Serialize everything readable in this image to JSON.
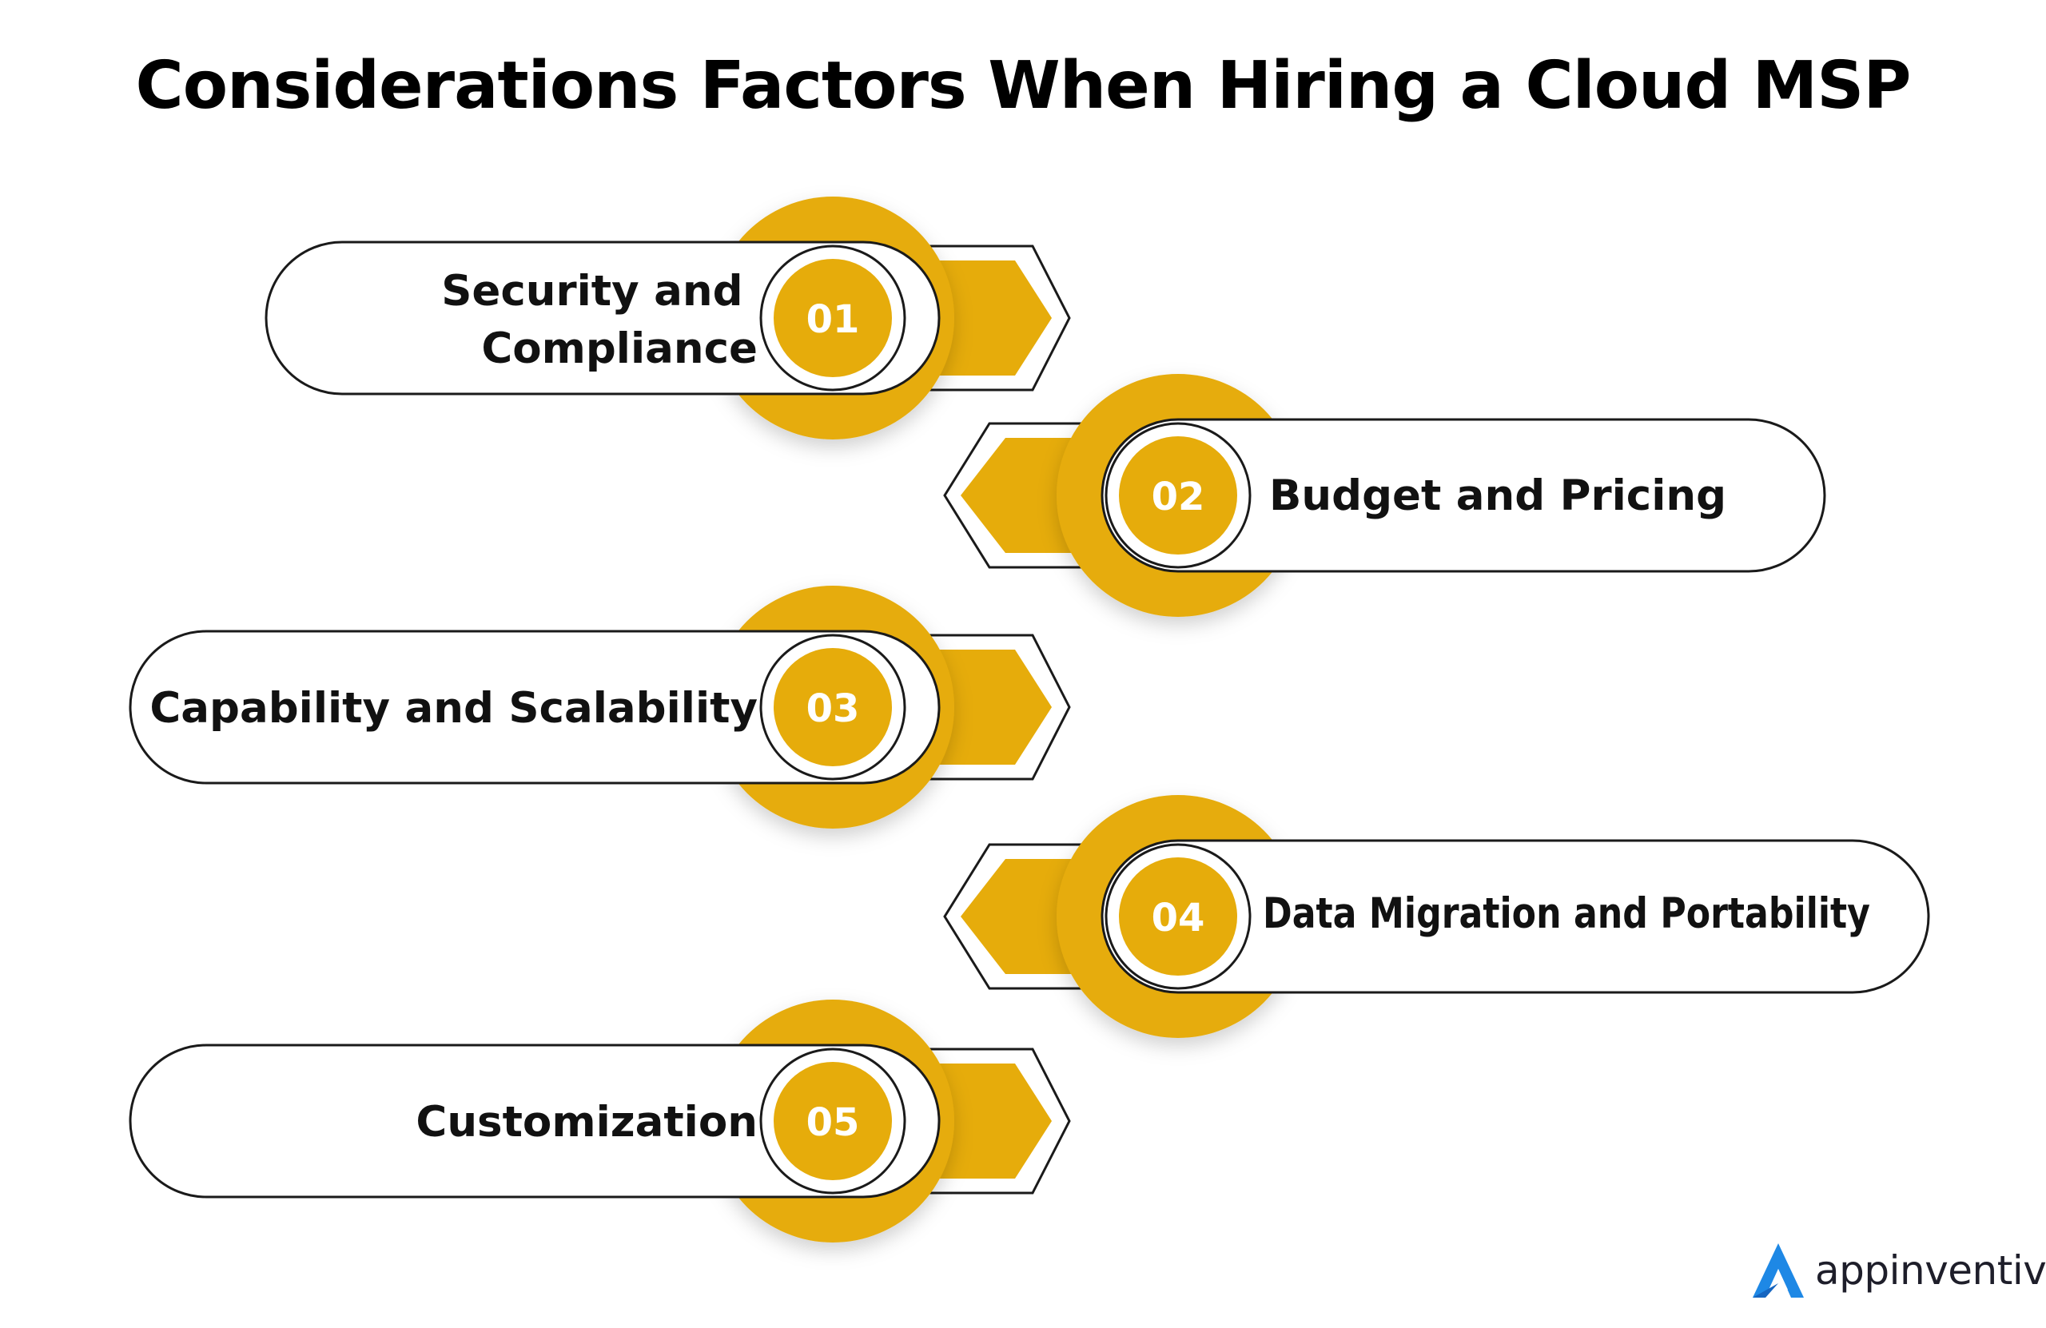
{
  "title": "Considerations Factors When Hiring a Cloud MSP",
  "accent_color": "#E6AC0B",
  "steps": [
    {
      "number": "01",
      "label_lines": [
        "Security and",
        "Compliance"
      ]
    },
    {
      "number": "02",
      "label_lines": [
        "Budget and Pricing"
      ]
    },
    {
      "number": "03",
      "label_lines": [
        "Capability and Scalability"
      ]
    },
    {
      "number": "04",
      "label_lines": [
        "Data Migration and Portability"
      ]
    },
    {
      "number": "05",
      "label_lines": [
        "Customization"
      ]
    }
  ],
  "brand": {
    "name": "appinventiv",
    "icon": "appinventiv-logo-icon",
    "color": "#1E88E5"
  }
}
